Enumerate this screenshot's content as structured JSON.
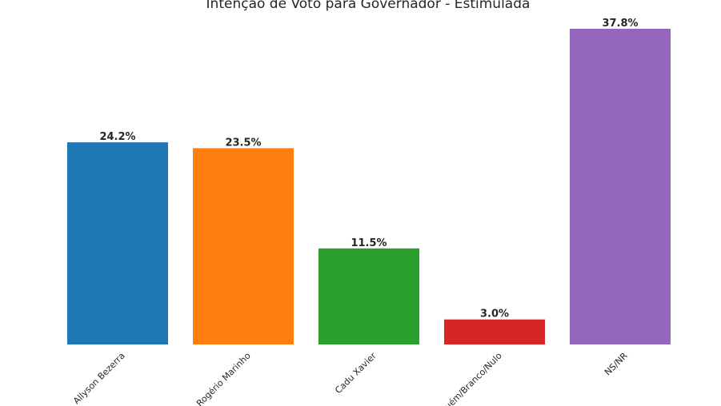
{
  "chart_data": {
    "type": "bar",
    "title": "Intenção de Voto para Governador - Estimulada",
    "categories": [
      "Allyson Bezerra",
      "Rogério Marinho",
      "Cadu Xavier",
      "Ninguém/Branco/Nulo",
      "NS/NR"
    ],
    "values": [
      24.2,
      23.5,
      11.5,
      3.0,
      37.8
    ],
    "data_labels": [
      "24.2%",
      "23.5%",
      "11.5%",
      "3.0%",
      "37.8%"
    ],
    "colors": [
      "#1f77b4",
      "#ff7f0e",
      "#2ca02c",
      "#d62728",
      "#9467bd"
    ],
    "xlabel": "",
    "ylabel": "",
    "ylim": [
      0,
      37.8
    ],
    "grid": false,
    "legend": "none"
  }
}
